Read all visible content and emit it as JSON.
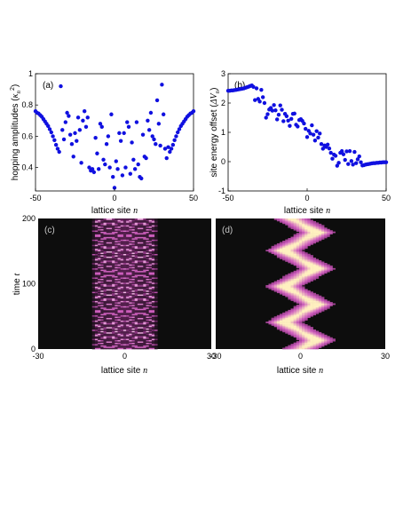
{
  "chart_data": [
    {
      "panel": "(a)",
      "type": "scatter",
      "xlabel": "lattice site",
      "xlabel_var": "n",
      "ylabel": "hopping amplitudes",
      "ylabel_sym": "κ",
      "ylabel_sub": "n",
      "ylabel_sup": "2",
      "xlim": [
        -50,
        50
      ],
      "ylim": [
        0.25,
        1.0
      ],
      "xticks": [
        "-50",
        "0",
        "50"
      ],
      "yticks": [
        "0.4",
        "0.6",
        "0.8",
        "1"
      ],
      "marker_color": "#1010e0",
      "points": [
        [
          -50,
          0.76
        ],
        [
          -49,
          0.75
        ],
        [
          -48,
          0.745
        ],
        [
          -47,
          0.735
        ],
        [
          -46,
          0.725
        ],
        [
          -45,
          0.71
        ],
        [
          -44,
          0.695
        ],
        [
          -43,
          0.68
        ],
        [
          -42,
          0.665
        ],
        [
          -41,
          0.645
        ],
        [
          -40,
          0.625
        ],
        [
          -39,
          0.6
        ],
        [
          -38,
          0.575
        ],
        [
          -37,
          0.545
        ],
        [
          -36,
          0.52
        ],
        [
          -35,
          0.5
        ],
        [
          -34,
          0.92
        ],
        [
          -33,
          0.64
        ],
        [
          -32,
          0.58
        ],
        [
          -31,
          0.69
        ],
        [
          -30,
          0.75
        ],
        [
          -29,
          0.73
        ],
        [
          -28,
          0.61
        ],
        [
          -27,
          0.55
        ],
        [
          -26,
          0.47
        ],
        [
          -25,
          0.62
        ],
        [
          -24,
          0.57
        ],
        [
          -23,
          0.72
        ],
        [
          -22,
          0.64
        ],
        [
          -21,
          0.43
        ],
        [
          -20,
          0.7
        ],
        [
          -19,
          0.76
        ],
        [
          -18,
          0.66
        ],
        [
          -17,
          0.72
        ],
        [
          -16,
          0.4
        ],
        [
          -15,
          0.38
        ],
        [
          -14,
          0.39
        ],
        [
          -13,
          0.37
        ],
        [
          -12,
          0.59
        ],
        [
          -11,
          0.49
        ],
        [
          -10,
          0.39
        ],
        [
          -9,
          0.68
        ],
        [
          -8,
          0.66
        ],
        [
          -7,
          0.45
        ],
        [
          -6,
          0.42
        ],
        [
          -5,
          0.55
        ],
        [
          -4,
          0.6
        ],
        [
          -3,
          0.4
        ],
        [
          -2,
          0.74
        ],
        [
          -1,
          0.34
        ],
        [
          0,
          0.27
        ],
        [
          1,
          0.44
        ],
        [
          2,
          0.39
        ],
        [
          3,
          0.62
        ],
        [
          4,
          0.57
        ],
        [
          5,
          0.35
        ],
        [
          6,
          0.62
        ],
        [
          7,
          0.4
        ],
        [
          8,
          0.69
        ],
        [
          9,
          0.66
        ],
        [
          10,
          0.36
        ],
        [
          11,
          0.56
        ],
        [
          12,
          0.45
        ],
        [
          13,
          0.39
        ],
        [
          14,
          0.69
        ],
        [
          15,
          0.42
        ],
        [
          16,
          0.34
        ],
        [
          17,
          0.33
        ],
        [
          18,
          0.61
        ],
        [
          19,
          0.47
        ],
        [
          20,
          0.46
        ],
        [
          21,
          0.7
        ],
        [
          22,
          0.64
        ],
        [
          23,
          0.75
        ],
        [
          24,
          0.6
        ],
        [
          25,
          0.58
        ],
        [
          26,
          0.55
        ],
        [
          27,
          0.83
        ],
        [
          28,
          0.68
        ],
        [
          29,
          0.54
        ],
        [
          30,
          0.93
        ],
        [
          31,
          0.74
        ],
        [
          32,
          0.52
        ],
        [
          33,
          0.46
        ],
        [
          34,
          0.53
        ],
        [
          35,
          0.5
        ],
        [
          36,
          0.52
        ],
        [
          37,
          0.545
        ],
        [
          38,
          0.575
        ],
        [
          39,
          0.6
        ],
        [
          40,
          0.625
        ],
        [
          41,
          0.645
        ],
        [
          42,
          0.665
        ],
        [
          43,
          0.68
        ],
        [
          44,
          0.695
        ],
        [
          45,
          0.71
        ],
        [
          46,
          0.725
        ],
        [
          47,
          0.735
        ],
        [
          48,
          0.745
        ],
        [
          49,
          0.75
        ],
        [
          50,
          0.76
        ]
      ]
    },
    {
      "panel": "(b)",
      "type": "scatter",
      "xlabel": "lattice site",
      "xlabel_var": "n",
      "ylabel": "site energy offset",
      "ylabel_sym": "ΔV",
      "ylabel_sub": "n",
      "xlim": [
        -50,
        50
      ],
      "ylim": [
        -1,
        3
      ],
      "xticks": [
        "-50",
        "0",
        "50"
      ],
      "yticks": [
        "-1",
        "0",
        "1",
        "2",
        "3"
      ],
      "marker_color": "#1010e0",
      "points": [
        [
          -50,
          2.42
        ],
        [
          -49,
          2.42
        ],
        [
          -48,
          2.43
        ],
        [
          -47,
          2.43
        ],
        [
          -46,
          2.44
        ],
        [
          -45,
          2.45
        ],
        [
          -44,
          2.46
        ],
        [
          -43,
          2.47
        ],
        [
          -42,
          2.48
        ],
        [
          -41,
          2.49
        ],
        [
          -40,
          2.5
        ],
        [
          -39,
          2.52
        ],
        [
          -38,
          2.54
        ],
        [
          -37,
          2.56
        ],
        [
          -36,
          2.58
        ],
        [
          -35,
          2.6
        ],
        [
          -34,
          2.55
        ],
        [
          -33,
          2.1
        ],
        [
          -32,
          2.5
        ],
        [
          -31,
          2.14
        ],
        [
          -30,
          2.05
        ],
        [
          -29,
          2.45
        ],
        [
          -28,
          2.2
        ],
        [
          -27,
          2.0
        ],
        [
          -26,
          1.5
        ],
        [
          -25,
          1.62
        ],
        [
          -24,
          1.78
        ],
        [
          -23,
          1.83
        ],
        [
          -22,
          1.74
        ],
        [
          -21,
          1.93
        ],
        [
          -20,
          1.75
        ],
        [
          -19,
          1.44
        ],
        [
          -18,
          1.6
        ],
        [
          -17,
          1.92
        ],
        [
          -16,
          1.77
        ],
        [
          -15,
          1.38
        ],
        [
          -14,
          1.63
        ],
        [
          -13,
          1.55
        ],
        [
          -12,
          1.4
        ],
        [
          -11,
          1.22
        ],
        [
          -10,
          1.46
        ],
        [
          -9,
          1.63
        ],
        [
          -8,
          1.64
        ],
        [
          -7,
          1.26
        ],
        [
          -6,
          1.2
        ],
        [
          -5,
          1.42
        ],
        [
          -4,
          1.45
        ],
        [
          -3,
          1.39
        ],
        [
          -2,
          1.3
        ],
        [
          -1,
          1.12
        ],
        [
          0,
          0.84
        ],
        [
          1,
          1.05
        ],
        [
          2,
          0.96
        ],
        [
          3,
          1.24
        ],
        [
          4,
          0.92
        ],
        [
          5,
          0.72
        ],
        [
          6,
          1.04
        ],
        [
          7,
          0.82
        ],
        [
          8,
          0.96
        ],
        [
          9,
          0.6
        ],
        [
          10,
          0.44
        ],
        [
          11,
          0.55
        ],
        [
          12,
          0.5
        ],
        [
          13,
          0.58
        ],
        [
          14,
          0.45
        ],
        [
          15,
          0.3
        ],
        [
          16,
          0.1
        ],
        [
          17,
          0.24
        ],
        [
          18,
          0.2
        ],
        [
          19,
          -0.14
        ],
        [
          20,
          -0.04
        ],
        [
          21,
          0.3
        ],
        [
          22,
          0.36
        ],
        [
          23,
          0.25
        ],
        [
          24,
          0.06
        ],
        [
          25,
          0.35
        ],
        [
          26,
          -0.08
        ],
        [
          27,
          0.36
        ],
        [
          28,
          0.02
        ],
        [
          29,
          -0.1
        ],
        [
          30,
          0.33
        ],
        [
          31,
          -0.05
        ],
        [
          32,
          0.08
        ],
        [
          33,
          0.18
        ],
        [
          34,
          -0.02
        ],
        [
          35,
          -0.13
        ],
        [
          36,
          -0.12
        ],
        [
          37,
          -0.1
        ],
        [
          38,
          -0.09
        ],
        [
          39,
          -0.08
        ],
        [
          40,
          -0.07
        ],
        [
          41,
          -0.06
        ],
        [
          42,
          -0.05
        ],
        [
          43,
          -0.05
        ],
        [
          44,
          -0.04
        ],
        [
          45,
          -0.04
        ],
        [
          46,
          -0.03
        ],
        [
          47,
          -0.03
        ],
        [
          48,
          -0.02
        ],
        [
          49,
          -0.02
        ],
        [
          50,
          -0.02
        ]
      ]
    },
    {
      "panel": "(c)",
      "type": "heatmap",
      "xlabel": "lattice site",
      "xlabel_var": "n",
      "ylabel": "time",
      "ylabel_var": "t",
      "xlim": [
        -30,
        30
      ],
      "ylim": [
        0,
        200
      ],
      "xticks": [
        "-30",
        "0",
        "30"
      ],
      "yticks": [
        "0",
        "100",
        "200"
      ],
      "background": "#0d0d0d",
      "colormap": [
        "#0d0d0d",
        "#7a2a70",
        "#d060c0",
        "#f8c8ec"
      ],
      "pattern": "crossing-rays",
      "band_halfwidth_sites": 11,
      "period_t": 29
    },
    {
      "panel": "(d)",
      "type": "heatmap",
      "xlabel": "lattice site",
      "xlabel_var": "n",
      "ylabel": "",
      "xlim": [
        -30,
        30
      ],
      "ylim": [
        0,
        200
      ],
      "xticks": [
        "-30",
        "0",
        "30"
      ],
      "background": "#0d0d0d",
      "colormap": [
        "#0d0d0d",
        "#7a2a70",
        "#d060c0",
        "#fff0c0"
      ],
      "pattern": "zigzag",
      "zigzag_amplitude_sites": 11,
      "period_t": 55
    }
  ]
}
